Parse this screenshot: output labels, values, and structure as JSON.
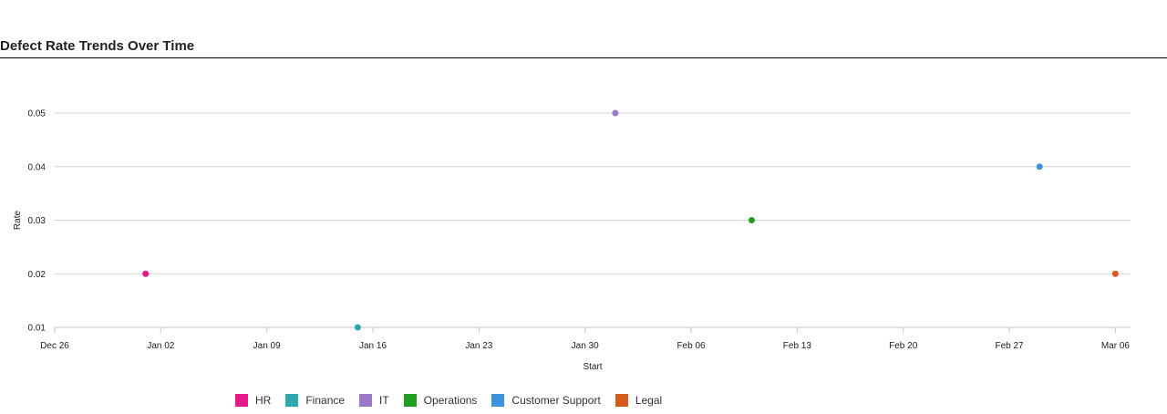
{
  "chart_data": {
    "type": "scatter",
    "title": "Defect Rate Trends Over Time",
    "xlabel": "Start",
    "ylabel": "Rate",
    "x_axis_type": "date",
    "xlim": [
      "2023-12-26",
      "2024-03-06"
    ],
    "ylim": [
      0.01,
      0.05
    ],
    "x_ticks": [
      "Dec 26",
      "Jan 02",
      "Jan 09",
      "Jan 16",
      "Jan 23",
      "Jan 30",
      "Feb 06",
      "Feb 13",
      "Feb 20",
      "Feb 27",
      "Mar 06"
    ],
    "y_ticks": [
      "0.01",
      "0.02",
      "0.03",
      "0.04",
      "0.05"
    ],
    "grid": "horizontal",
    "legend_position": "bottom",
    "series": [
      {
        "name": "HR",
        "color": "#e6198a",
        "points": [
          {
            "x": "2024-01-01",
            "y": 0.02
          }
        ]
      },
      {
        "name": "Finance",
        "color": "#2ca8a8",
        "points": [
          {
            "x": "2024-01-15",
            "y": 0.01
          }
        ]
      },
      {
        "name": "IT",
        "color": "#9b78c8",
        "points": [
          {
            "x": "2024-02-01",
            "y": 0.05
          }
        ]
      },
      {
        "name": "Operations",
        "color": "#1f9e1f",
        "points": [
          {
            "x": "2024-02-10",
            "y": 0.03
          }
        ]
      },
      {
        "name": "Customer Support",
        "color": "#3d94dc",
        "points": [
          {
            "x": "2024-02-29",
            "y": 0.04
          }
        ]
      },
      {
        "name": "Legal",
        "color": "#d45a1e",
        "points": [
          {
            "x": "2024-03-05",
            "y": 0.02
          }
        ]
      }
    ]
  }
}
